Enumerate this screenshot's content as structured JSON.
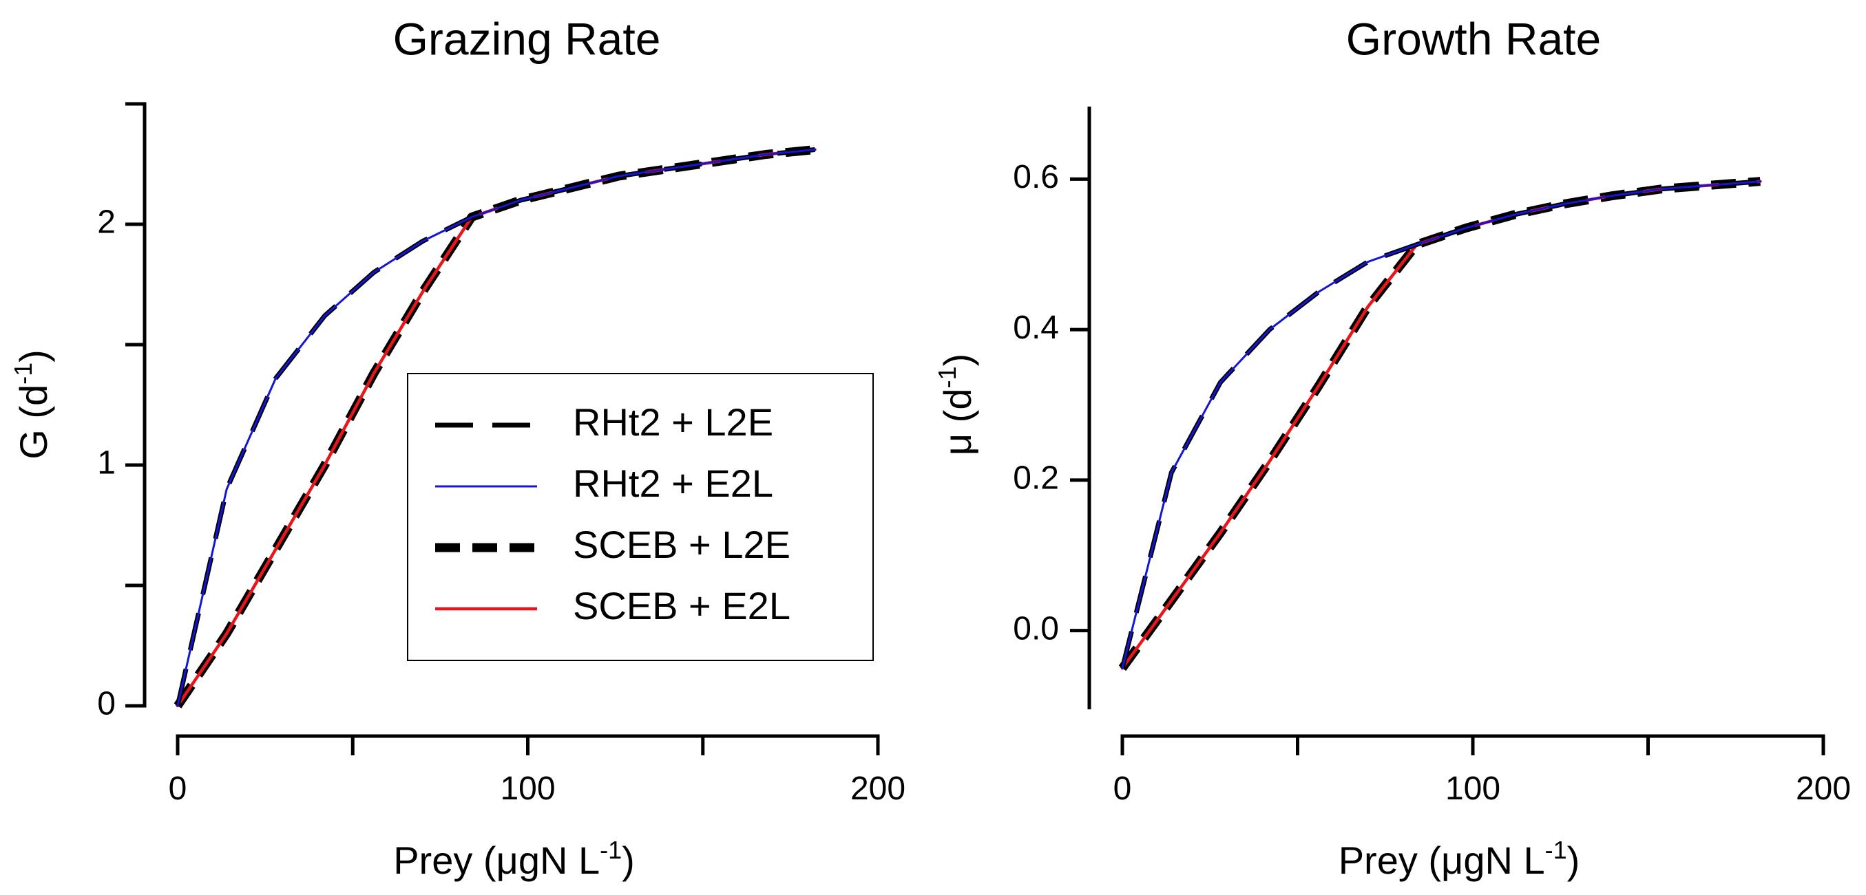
{
  "chart_data": [
    {
      "type": "line",
      "title": "Grazing Rate",
      "xlabel": "Prey (μgN L",
      "xlabel_sup": "-1",
      "xlabel_end": ")",
      "ylabel": "G (d",
      "ylabel_sup": "-1",
      "ylabel_end": ")",
      "xlim": [
        0,
        200
      ],
      "ylim": [
        0,
        2.5
      ],
      "xticks": [
        0,
        50,
        100,
        150,
        200
      ],
      "xtick_labels": [
        "0",
        "",
        "100",
        "",
        "200"
      ],
      "yticks": [
        0,
        0.5,
        1,
        1.5,
        2,
        2.5
      ],
      "ytick_labels": [
        "0",
        "",
        "1",
        "",
        "2",
        ""
      ],
      "series": [
        {
          "name": "RHt2 + L2E",
          "color": "#000000",
          "style": "long-dash",
          "x": [
            0,
            14,
            28,
            42,
            56,
            70,
            84,
            98,
            112,
            126,
            140,
            154,
            168,
            182
          ],
          "y": [
            0,
            0.9,
            1.36,
            1.62,
            1.8,
            1.93,
            2.03,
            2.1,
            2.15,
            2.2,
            2.23,
            2.26,
            2.29,
            2.31
          ]
        },
        {
          "name": "RHt2 + E2L",
          "color": "#1515d6",
          "style": "solid-thin",
          "x": [
            0,
            14,
            28,
            42,
            56,
            70,
            84,
            98,
            112,
            126,
            140,
            154,
            168,
            182
          ],
          "y": [
            0,
            0.9,
            1.36,
            1.62,
            1.8,
            1.93,
            2.03,
            2.1,
            2.15,
            2.2,
            2.23,
            2.26,
            2.29,
            2.31
          ]
        },
        {
          "name": "SCEB + L2E",
          "color": "#000000",
          "style": "thick-dash",
          "x": [
            0,
            14,
            28,
            42,
            56,
            70,
            84,
            98,
            112,
            126,
            140,
            154,
            168,
            182
          ],
          "y": [
            0,
            0.3,
            0.65,
            1.0,
            1.38,
            1.72,
            2.03,
            2.1,
            2.15,
            2.2,
            2.23,
            2.26,
            2.29,
            2.31
          ]
        },
        {
          "name": "SCEB + E2L",
          "color": "#e8161b",
          "style": "solid",
          "x": [
            0,
            14,
            28,
            42,
            56,
            70,
            84,
            98,
            112,
            126,
            140,
            154,
            168,
            182
          ],
          "y": [
            0,
            0.3,
            0.65,
            1.0,
            1.38,
            1.72,
            2.03,
            2.1,
            2.15,
            2.2,
            2.23,
            2.26,
            2.29,
            2.31
          ]
        }
      ],
      "legend": {
        "position": "center-right",
        "entries": [
          "RHt2 + L2E",
          "RHt2 + E2L",
          "SCEB + L2E",
          "SCEB + E2L"
        ]
      }
    },
    {
      "type": "line",
      "title": "Growth Rate",
      "xlabel": "Prey (μgN L",
      "xlabel_sup": "-1",
      "xlabel_end": ")",
      "ylabel": "μ (d",
      "ylabel_sup": "-1",
      "ylabel_end": ")",
      "xlim": [
        0,
        200
      ],
      "ylim": [
        -0.1,
        0.7
      ],
      "xticks": [
        0,
        50,
        100,
        150,
        200
      ],
      "xtick_labels": [
        "0",
        "",
        "100",
        "",
        "200"
      ],
      "yticks": [
        0,
        0.2,
        0.4,
        0.6
      ],
      "ytick_labels": [
        "0.0",
        "0.2",
        "0.4",
        "0.6"
      ],
      "series": [
        {
          "name": "RHt2 + L2E",
          "color": "#000000",
          "style": "long-dash",
          "x": [
            0,
            14,
            28,
            42,
            56,
            70,
            84,
            98,
            112,
            126,
            140,
            154,
            168,
            182
          ],
          "y": [
            -0.05,
            0.21,
            0.33,
            0.4,
            0.45,
            0.49,
            0.513,
            0.535,
            0.553,
            0.567,
            0.578,
            0.587,
            0.592,
            0.597
          ]
        },
        {
          "name": "RHt2 + E2L",
          "color": "#1515d6",
          "style": "solid-thin",
          "x": [
            0,
            14,
            28,
            42,
            56,
            70,
            84,
            98,
            112,
            126,
            140,
            154,
            168,
            182
          ],
          "y": [
            -0.05,
            0.21,
            0.33,
            0.4,
            0.45,
            0.49,
            0.513,
            0.535,
            0.553,
            0.567,
            0.578,
            0.587,
            0.592,
            0.597
          ]
        },
        {
          "name": "SCEB + L2E",
          "color": "#000000",
          "style": "thick-dash",
          "x": [
            0,
            14,
            28,
            42,
            56,
            70,
            84,
            98,
            112,
            126,
            140,
            154,
            168,
            182
          ],
          "y": [
            -0.05,
            0.04,
            0.13,
            0.225,
            0.325,
            0.43,
            0.513,
            0.535,
            0.553,
            0.567,
            0.578,
            0.587,
            0.592,
            0.597
          ]
        },
        {
          "name": "SCEB + E2L",
          "color": "#e8161b",
          "style": "solid",
          "x": [
            0,
            14,
            28,
            42,
            56,
            70,
            84,
            98,
            112,
            126,
            140,
            154,
            168,
            182
          ],
          "y": [
            -0.05,
            0.04,
            0.13,
            0.225,
            0.325,
            0.43,
            0.513,
            0.535,
            0.553,
            0.567,
            0.578,
            0.587,
            0.592,
            0.597
          ]
        }
      ]
    }
  ]
}
